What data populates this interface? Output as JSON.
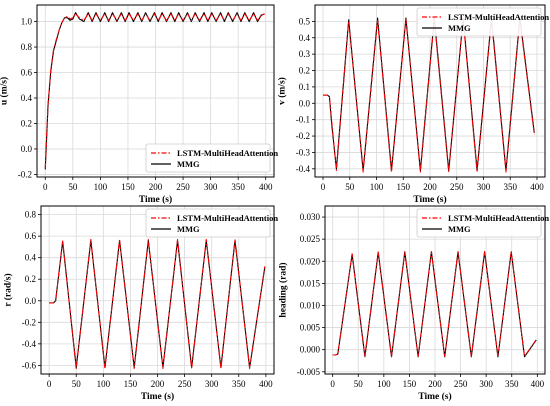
{
  "chart_data": [
    {
      "type": "line",
      "xlabel": "Time (s)",
      "ylabel": "u (m/s)",
      "xlim": [
        -15,
        415
      ],
      "ylim": [
        -0.22,
        1.13
      ],
      "xticks": [
        0,
        50,
        100,
        150,
        200,
        250,
        300,
        350,
        400
      ],
      "yticks": [
        -0.2,
        0.0,
        0.2,
        0.4,
        0.6,
        0.8,
        1.0
      ],
      "ytick_labels": [
        "-0.2",
        "0.0",
        "0.2",
        "0.4",
        "0.6",
        "0.8",
        "1.0"
      ],
      "grid": true,
      "legend_position": "lower-right",
      "series": [
        {
          "name": "LSTM-MultiHeadAttention",
          "color": "#ff0000",
          "style": "dashdot",
          "x": [
            0,
            5,
            10,
            15,
            20,
            25,
            30,
            35,
            40,
            45,
            50,
            55,
            62,
            70,
            78,
            85,
            92,
            100,
            108,
            115,
            122,
            130,
            138,
            145,
            152,
            160,
            168,
            175,
            182,
            190,
            198,
            205,
            212,
            220,
            228,
            235,
            242,
            250,
            258,
            265,
            272,
            280,
            288,
            295,
            302,
            310,
            318,
            325,
            332,
            340,
            348,
            355,
            362,
            370,
            378,
            385,
            392,
            398
          ],
          "y": [
            -0.15,
            0.35,
            0.62,
            0.78,
            0.86,
            0.93,
            0.99,
            1.03,
            1.04,
            1.02,
            1.03,
            1.06,
            1.03,
            1.01,
            1.06,
            1.01,
            1.06,
            1.01,
            1.06,
            1.01,
            1.06,
            1.01,
            1.06,
            1.01,
            1.06,
            1.01,
            1.06,
            1.01,
            1.06,
            1.01,
            1.06,
            1.01,
            1.06,
            1.01,
            1.06,
            1.01,
            1.06,
            1.01,
            1.06,
            1.01,
            1.06,
            1.01,
            1.06,
            1.01,
            1.06,
            1.01,
            1.06,
            1.01,
            1.06,
            1.01,
            1.06,
            1.01,
            1.06,
            1.01,
            1.06,
            1.01,
            1.05,
            1.06
          ]
        },
        {
          "name": "MMG",
          "color": "#000000",
          "style": "solid",
          "x": [
            0,
            5,
            10,
            15,
            20,
            25,
            30,
            35,
            40,
            45,
            50,
            55,
            62,
            70,
            78,
            85,
            92,
            100,
            108,
            115,
            122,
            130,
            138,
            145,
            152,
            160,
            168,
            175,
            182,
            190,
            198,
            205,
            212,
            220,
            228,
            235,
            242,
            250,
            258,
            265,
            272,
            280,
            288,
            295,
            302,
            310,
            318,
            325,
            332,
            340,
            348,
            355,
            362,
            370,
            378,
            385,
            392,
            398
          ],
          "y": [
            -0.16,
            0.34,
            0.61,
            0.77,
            0.85,
            0.93,
            0.99,
            1.03,
            1.03,
            1.01,
            1.02,
            1.07,
            1.02,
            1.0,
            1.07,
            1.0,
            1.07,
            1.0,
            1.07,
            1.0,
            1.07,
            1.0,
            1.07,
            1.0,
            1.07,
            1.0,
            1.07,
            1.0,
            1.07,
            1.0,
            1.07,
            1.0,
            1.07,
            1.0,
            1.07,
            1.0,
            1.07,
            1.0,
            1.07,
            1.0,
            1.07,
            1.0,
            1.07,
            1.0,
            1.07,
            1.0,
            1.07,
            1.0,
            1.07,
            1.0,
            1.07,
            1.0,
            1.07,
            1.0,
            1.07,
            1.0,
            1.05,
            1.06
          ]
        }
      ]
    },
    {
      "type": "line",
      "xlabel": "Time (s)",
      "ylabel": "v (m/s)",
      "xlim": [
        -15,
        415
      ],
      "ylim": [
        -0.45,
        0.6
      ],
      "xticks": [
        0,
        50,
        100,
        150,
        200,
        250,
        300,
        350,
        400
      ],
      "yticks": [
        -0.4,
        -0.3,
        -0.2,
        -0.1,
        0.0,
        0.1,
        0.2,
        0.3,
        0.4,
        0.5
      ],
      "ytick_labels": [
        "-0.4",
        "-0.3",
        "-0.2",
        "-0.1",
        "0.0",
        "0.1",
        "0.2",
        "0.3",
        "0.4",
        "0.5"
      ],
      "grid": true,
      "legend_position": "upper-right",
      "series": [
        {
          "name": "LSTM-MultiHeadAttention",
          "color": "#ff0000",
          "style": "dashdot",
          "x": [
            0,
            5,
            8,
            12,
            16,
            25,
            48,
            75,
            102,
            128,
            155,
            182,
            208,
            235,
            262,
            288,
            315,
            342,
            368,
            395
          ],
          "y": [
            0.05,
            0.05,
            0.05,
            0.04,
            -0.1,
            -0.41,
            0.5,
            -0.42,
            0.51,
            -0.42,
            0.51,
            -0.42,
            0.51,
            -0.42,
            0.51,
            -0.42,
            0.51,
            -0.42,
            0.51,
            -0.19
          ]
        },
        {
          "name": "MMG",
          "color": "#000000",
          "style": "solid",
          "x": [
            0,
            5,
            8,
            12,
            16,
            25,
            48,
            75,
            102,
            128,
            155,
            182,
            208,
            235,
            262,
            288,
            315,
            342,
            368,
            395
          ],
          "y": [
            0.05,
            0.05,
            0.05,
            0.04,
            -0.12,
            -0.4,
            0.51,
            -0.41,
            0.52,
            -0.41,
            0.52,
            -0.41,
            0.52,
            -0.41,
            0.52,
            -0.41,
            0.52,
            -0.41,
            0.52,
            -0.18
          ]
        }
      ]
    },
    {
      "type": "line",
      "xlabel": "Time (s)",
      "ylabel": "r (rad/s)",
      "xlim": [
        -15,
        415
      ],
      "ylim": [
        -0.68,
        0.88
      ],
      "xticks": [
        0,
        50,
        100,
        150,
        200,
        250,
        300,
        350,
        400
      ],
      "yticks": [
        -0.6,
        -0.4,
        -0.2,
        0.0,
        0.2,
        0.4,
        0.6,
        0.8
      ],
      "ytick_labels": [
        "-0.6",
        "-0.4",
        "-0.2",
        "0.0",
        "0.2",
        "0.4",
        "0.6",
        "0.8"
      ],
      "grid": true,
      "legend_position": "upper-right",
      "series": [
        {
          "name": "LSTM-MultiHeadAttention",
          "color": "#ff0000",
          "style": "dashdot",
          "x": [
            0,
            5,
            8,
            12,
            25,
            50,
            77,
            103,
            130,
            157,
            183,
            210,
            237,
            263,
            290,
            317,
            343,
            370,
            398
          ],
          "y": [
            -0.02,
            -0.02,
            -0.02,
            0.0,
            0.56,
            -0.63,
            0.57,
            -0.63,
            0.57,
            -0.63,
            0.57,
            -0.63,
            0.57,
            -0.63,
            0.57,
            -0.63,
            0.57,
            -0.63,
            0.32
          ]
        },
        {
          "name": "MMG",
          "color": "#000000",
          "style": "solid",
          "x": [
            0,
            5,
            8,
            12,
            25,
            50,
            77,
            103,
            130,
            157,
            183,
            210,
            237,
            263,
            290,
            317,
            343,
            370,
            398
          ],
          "y": [
            -0.02,
            -0.02,
            -0.02,
            0.0,
            0.55,
            -0.62,
            0.56,
            -0.62,
            0.56,
            -0.62,
            0.56,
            -0.62,
            0.56,
            -0.62,
            0.56,
            -0.62,
            0.56,
            -0.62,
            0.31
          ]
        }
      ]
    },
    {
      "type": "line",
      "xlabel": "Time (s)",
      "ylabel": "heading (rad)",
      "xlim": [
        -15,
        415
      ],
      "ylim": [
        -0.0055,
        0.0325
      ],
      "xticks": [
        0,
        50,
        100,
        150,
        200,
        250,
        300,
        350,
        400
      ],
      "yticks": [
        -0.005,
        0.0,
        0.005,
        0.01,
        0.015,
        0.02,
        0.025,
        0.03
      ],
      "ytick_labels": [
        "-0.005",
        "0.000",
        "0.005",
        "0.010",
        "0.015",
        "0.020",
        "0.025",
        "0.030"
      ],
      "grid": true,
      "legend_position": "upper-right",
      "series": [
        {
          "name": "LSTM-MultiHeadAttention",
          "color": "#ff0000",
          "style": "dashdot",
          "x": [
            0,
            5,
            10,
            38,
            63,
            89,
            115,
            141,
            167,
            193,
            219,
            245,
            271,
            297,
            323,
            349,
            375,
            398
          ],
          "y": [
            -0.0012,
            -0.0012,
            -0.001,
            0.0217,
            -0.0015,
            0.0221,
            -0.0015,
            0.0222,
            -0.0015,
            0.0222,
            -0.0015,
            0.0222,
            -0.0015,
            0.0222,
            -0.0015,
            0.0222,
            -0.0015,
            0.0023
          ]
        },
        {
          "name": "MMG",
          "color": "#000000",
          "style": "solid",
          "x": [
            0,
            5,
            10,
            38,
            63,
            89,
            115,
            141,
            167,
            193,
            219,
            245,
            271,
            297,
            323,
            349,
            375,
            398
          ],
          "y": [
            -0.0012,
            -0.0012,
            -0.001,
            0.0216,
            -0.0016,
            0.022,
            -0.0016,
            0.0221,
            -0.0016,
            0.0221,
            -0.0016,
            0.0221,
            -0.0016,
            0.0221,
            -0.0016,
            0.0221,
            -0.0016,
            0.0022
          ]
        }
      ]
    }
  ]
}
